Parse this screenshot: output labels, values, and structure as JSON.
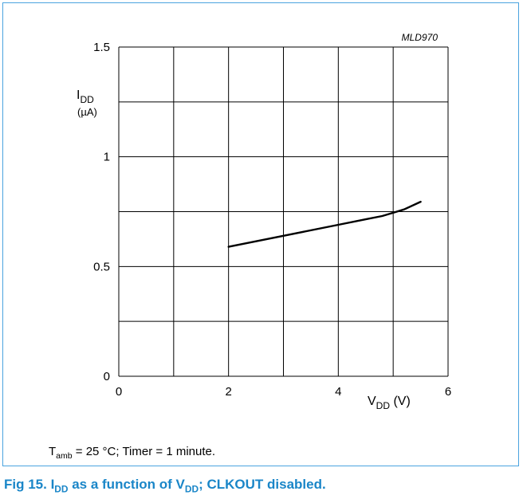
{
  "figure_code": "MLD970",
  "chart_data": {
    "type": "line",
    "ylabel_main": "I",
    "ylabel_sub": "DD",
    "ylabel_unit": "(µA)",
    "xlabel_main": "V",
    "xlabel_sub": "DD",
    "xlabel_unit": " (V)",
    "xlim": [
      0,
      6
    ],
    "ylim": [
      0,
      1.5
    ],
    "x_ticks": [
      0,
      2,
      4,
      6
    ],
    "x_tick_labels": [
      "0",
      "2",
      "4",
      "6"
    ],
    "y_ticks": [
      0,
      0.5,
      1,
      1.5
    ],
    "y_tick_labels": [
      "0",
      "0.5",
      "1",
      "1.5"
    ],
    "x_grid": [
      0,
      1,
      2,
      3,
      4,
      5,
      6
    ],
    "y_grid": [
      0,
      0.25,
      0.5,
      0.75,
      1,
      1.25,
      1.5
    ],
    "grid": true,
    "series": [
      {
        "x": [
          2.0,
          3.0,
          4.0,
          4.5,
          4.8,
          5.0,
          5.2,
          5.5
        ],
        "y": [
          0.59,
          0.64,
          0.69,
          0.715,
          0.73,
          0.745,
          0.76,
          0.795
        ]
      }
    ]
  },
  "note": {
    "t": "T",
    "t_sub": "amb",
    "rest": " = 25 °C; Timer = 1 minute."
  },
  "caption": {
    "prefix": "Fig 15.  I",
    "sub1": "DD",
    "mid": " as a function of V",
    "sub2": "DD",
    "suffix": "; CLKOUT disabled."
  }
}
